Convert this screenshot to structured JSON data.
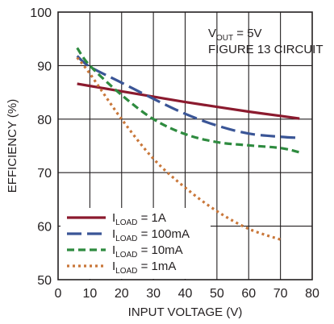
{
  "chart_data": {
    "type": "line",
    "title": "",
    "xlabel": "INPUT VOLTAGE (V)",
    "ylabel": "EFFICIENCY (%)",
    "xlim": [
      0,
      80
    ],
    "ylim": [
      50,
      100
    ],
    "xticks": [
      0,
      10,
      20,
      30,
      40,
      50,
      60,
      70,
      80
    ],
    "yticks": [
      50,
      60,
      70,
      80,
      90,
      100
    ],
    "grid": true,
    "legend_position": "bottom-left",
    "annotation": {
      "line1_main": "V",
      "line1_sub": "OUT",
      "line1_rest": " = 5V",
      "line2": "FIGURE 13 CIRCUIT"
    },
    "series": [
      {
        "name_main": "I",
        "name_sub": "LOAD",
        "name_rest": " = 1A",
        "color": "#8b1a2e",
        "dash": "solid",
        "x": [
          6,
          10,
          20,
          30,
          40,
          50,
          60,
          70,
          76
        ],
        "y": [
          86.6,
          86.2,
          85.2,
          84.2,
          83.2,
          82.3,
          81.4,
          80.6,
          80.1
        ]
      },
      {
        "name_main": "I",
        "name_sub": "LOAD",
        "name_rest": " = 100mA",
        "color": "#3a5596",
        "dash": "long",
        "x": [
          6,
          10,
          20,
          30,
          40,
          50,
          60,
          70,
          76
        ],
        "y": [
          91.8,
          89.8,
          86.8,
          83.8,
          81.0,
          78.8,
          77.3,
          76.7,
          76.5
        ]
      },
      {
        "name_main": "I",
        "name_sub": "LOAD",
        "name_rest": " = 10mA",
        "color": "#2e8b3f",
        "dash": "medium",
        "x": [
          6,
          10,
          20,
          30,
          40,
          50,
          60,
          70,
          76
        ],
        "y": [
          93.3,
          90.0,
          84.5,
          80.0,
          77.2,
          75.7,
          75.1,
          74.6,
          73.8
        ]
      },
      {
        "name_main": "I",
        "name_sub": "LOAD",
        "name_rest": " = 1mA",
        "color": "#c9773a",
        "dash": "dotted",
        "x": [
          6,
          10,
          20,
          30,
          40,
          50,
          60,
          70
        ],
        "y": [
          91.5,
          88.5,
          80.0,
          72.6,
          67.2,
          62.8,
          59.5,
          57.5
        ]
      }
    ]
  }
}
